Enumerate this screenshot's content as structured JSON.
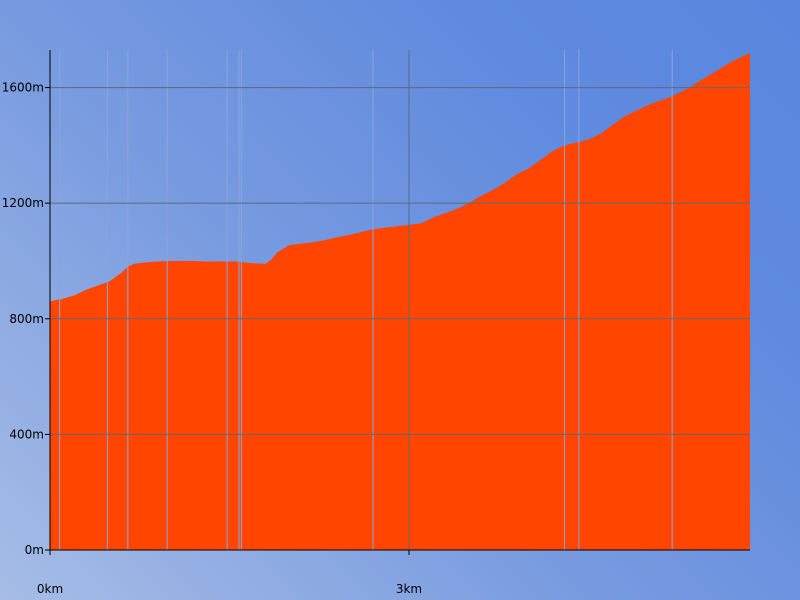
{
  "chart_data": {
    "type": "area",
    "title": "",
    "xlabel": "",
    "ylabel": "",
    "x_unit": "km",
    "y_unit": "m",
    "xlim": [
      0,
      5.85
    ],
    "ylim": [
      0,
      1730
    ],
    "x_ticks": [
      {
        "value": 0,
        "label": "0km"
      },
      {
        "value": 3,
        "label": "3km"
      }
    ],
    "y_ticks": [
      {
        "value": 0,
        "label": "0m"
      },
      {
        "value": 400,
        "label": "400m"
      },
      {
        "value": 800,
        "label": "800m"
      },
      {
        "value": 1200,
        "label": "1200m"
      },
      {
        "value": 1600,
        "label": "1600m"
      }
    ],
    "grid": true,
    "legend": "none",
    "colors": {
      "fill": "#ff4500",
      "grid": "#606878",
      "axis": "#000000",
      "gap": "#8aa4dc"
    },
    "series": [
      {
        "x": [
          0,
          0.05,
          0.1,
          0.15,
          0.2,
          0.3,
          0.4,
          0.5,
          0.6,
          0.65,
          0.7,
          0.8,
          0.9,
          1.0,
          1.05,
          1.1,
          1.2,
          1.3,
          1.4,
          1.45,
          1.5,
          1.55,
          1.6,
          1.65,
          1.7,
          1.8,
          1.85,
          1.9,
          2.0,
          2.1,
          2.2,
          2.3,
          2.4,
          2.5,
          2.6,
          2.7,
          2.8,
          2.9,
          3.0,
          3.1,
          3.2,
          3.3,
          3.4,
          3.5,
          3.6,
          3.7,
          3.8,
          3.9,
          4.0,
          4.1,
          4.2,
          4.3,
          4.4,
          4.5,
          4.6,
          4.7,
          4.8,
          4.9,
          5.0,
          5.1,
          5.2,
          5.3,
          5.4,
          5.5,
          5.6,
          5.7,
          5.8,
          5.85
        ],
        "y": [
          860,
          865,
          868,
          875,
          880,
          900,
          915,
          930,
          960,
          980,
          990,
          995,
          998,
          1000,
          1000,
          1000,
          1000,
          998,
          998,
          998,
          998,
          998,
          997,
          994,
          992,
          990,
          1005,
          1030,
          1055,
          1060,
          1065,
          1072,
          1082,
          1090,
          1100,
          1110,
          1115,
          1120,
          1125,
          1130,
          1150,
          1165,
          1180,
          1200,
          1225,
          1245,
          1270,
          1300,
          1320,
          1350,
          1380,
          1400,
          1410,
          1420,
          1440,
          1470,
          1500,
          1520,
          1540,
          1555,
          1570,
          1590,
          1615,
          1640,
          1665,
          1690,
          1710,
          1720
        ]
      }
    ],
    "gaps_x": [
      0.08,
      0.48,
      0.65,
      0.98,
      1.48,
      1.58,
      1.6,
      2.7,
      4.3,
      4.42,
      5.2
    ]
  }
}
